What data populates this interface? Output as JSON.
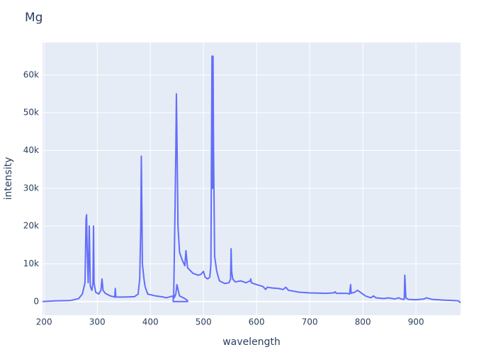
{
  "chart_data": {
    "type": "line",
    "title": "Mg",
    "x_label": "wavelength",
    "y_label": "intensity",
    "color": "#636efa",
    "grid": true,
    "x": [
      197,
      220,
      250,
      265,
      272,
      277,
      279,
      280,
      281,
      283,
      285,
      287,
      290,
      292,
      293,
      294,
      297,
      303,
      307,
      309,
      311,
      315,
      325,
      333,
      334,
      335,
      350,
      370,
      377,
      380,
      382,
      383,
      384,
      385,
      388,
      390,
      395,
      410,
      425,
      430,
      440,
      443,
      443,
      470,
      470,
      465,
      455,
      450,
      448,
      445,
      444,
      446,
      448,
      449,
      450,
      452,
      455,
      460,
      465,
      467,
      470,
      480,
      490,
      495,
      500,
      503,
      508,
      512,
      514,
      516,
      517,
      518,
      519,
      521,
      525,
      530,
      540,
      548,
      551,
      552,
      553,
      555,
      560,
      570,
      580,
      588,
      589,
      590,
      600,
      612,
      617,
      620,
      630,
      640,
      650,
      655,
      660,
      680,
      700,
      730,
      745,
      748,
      750,
      770,
      775,
      777,
      778,
      785,
      790,
      795,
      805,
      815,
      820,
      825,
      840,
      848,
      860,
      868,
      872,
      878,
      879,
      880,
      881,
      885,
      900,
      915,
      920,
      925,
      930,
      950,
      970,
      980,
      984
    ],
    "values": [
      0,
      200,
      300,
      800,
      2000,
      5000,
      22000,
      23000,
      14000,
      5000,
      20000,
      4000,
      3000,
      5000,
      20000,
      5000,
      2500,
      2000,
      3000,
      6000,
      3000,
      2200,
      1500,
      1200,
      3500,
      1200,
      1200,
      1300,
      2000,
      6000,
      20000,
      38500,
      25000,
      10000,
      6000,
      4000,
      2000,
      1500,
      1200,
      1000,
      1400,
      1500,
      0,
      0,
      300,
      800,
      1500,
      4500,
      2000,
      1000,
      2000,
      20000,
      40000,
      55000,
      45000,
      20000,
      13000,
      11000,
      9500,
      13500,
      9000,
      7500,
      7000,
      7200,
      8000,
      6500,
      6000,
      6500,
      10000,
      65000,
      30000,
      65000,
      40000,
      12000,
      8000,
      5500,
      4800,
      5000,
      6000,
      14000,
      8000,
      6000,
      5200,
      5500,
      5000,
      5500,
      6000,
      5000,
      4500,
      4000,
      3200,
      3800,
      3600,
      3500,
      3200,
      3800,
      3000,
      2500,
      2300,
      2200,
      2300,
      2600,
      2200,
      2200,
      2000,
      4500,
      2200,
      2500,
      3000,
      2500,
      1500,
      1000,
      1500,
      1000,
      800,
      1000,
      700,
      1000,
      700,
      600,
      7000,
      4000,
      1000,
      600,
      500,
      700,
      1000,
      800,
      600,
      400,
      300,
      200,
      -300
    ],
    "xlim": [
      197,
      984
    ],
    "ylim": [
      -3600,
      68600
    ],
    "xticks": [
      200,
      300,
      400,
      500,
      600,
      700,
      800,
      900
    ],
    "yticks": [
      0,
      {
        "value": 10000,
        "label": "10k"
      },
      {
        "value": 20000,
        "label": "20k"
      },
      {
        "value": 30000,
        "label": "30k"
      },
      {
        "value": 40000,
        "label": "40k"
      },
      {
        "value": 50000,
        "label": "50k"
      },
      {
        "value": 60000,
        "label": "60k"
      }
    ]
  }
}
